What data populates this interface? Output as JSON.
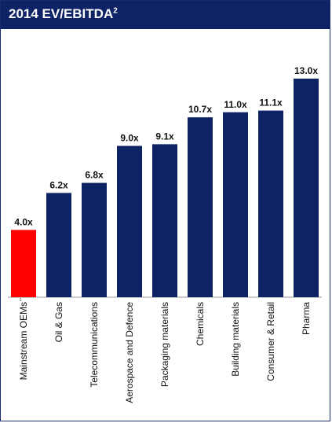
{
  "chart_data": {
    "type": "bar",
    "title": "2014 EV/EBITDA",
    "title_superscript": "2",
    "categories": [
      "Mainstream OEMs",
      "Oil & Gas",
      "Telecommunications",
      "Aerospace and Defence",
      "Packaging materials",
      "Chemicals",
      "Building materials",
      "Consumer & Retail",
      "Pharma"
    ],
    "category_footnotes": [
      "1",
      "",
      "",
      "",
      "",
      "",
      "",
      "",
      ""
    ],
    "values": [
      4.0,
      6.2,
      6.8,
      9.0,
      9.1,
      10.7,
      11.0,
      11.1,
      13.0
    ],
    "value_labels": [
      "4.0x",
      "6.2x",
      "6.8x",
      "9.0x",
      "9.1x",
      "10.7x",
      "11.0x",
      "11.1x",
      "13.0x"
    ],
    "ylim": [
      0,
      13.0
    ],
    "grid": false,
    "legend": "none",
    "colors": {
      "header": "#0e2365",
      "bar_default": "#0e2365",
      "bar_highlight": "#ff0000",
      "highlight_index": 0
    }
  }
}
